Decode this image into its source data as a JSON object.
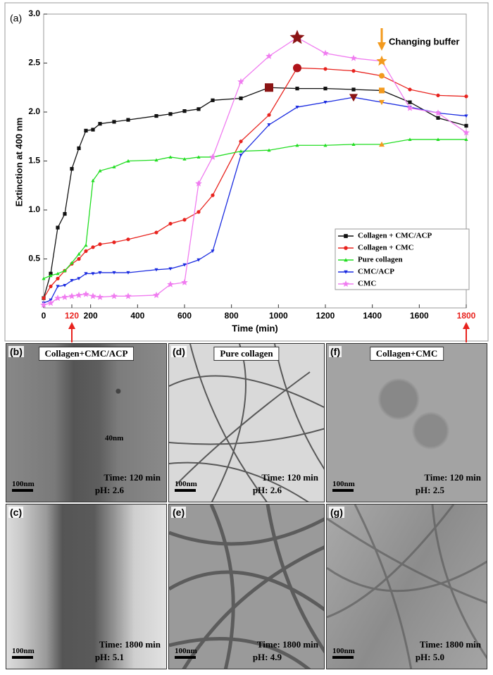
{
  "chart_data": {
    "type": "line",
    "panel_label": "(a)",
    "y_label": "Extinction at 400 nm",
    "x_label": "Time (min)",
    "xlim": [
      0,
      1800
    ],
    "ylim": [
      0,
      3
    ],
    "xticks": [
      0,
      120,
      200,
      400,
      600,
      800,
      1000,
      1200,
      1400,
      1600,
      1800
    ],
    "yticks": [
      0.5,
      {
        "value": 1,
        "label": "1.0"
      },
      1.5,
      {
        "value": 2,
        "label": "2.0"
      },
      2.5,
      {
        "value": 3,
        "label": "3.0"
      }
    ],
    "highlight_xticks": [
      120,
      1800
    ],
    "highlight_color": "#e8231e",
    "annotation": "Changing buffer",
    "buffer_change_x": 1440,
    "buffer_color": "#f39a1e",
    "legend": "lower right",
    "x": [
      0,
      30,
      60,
      90,
      120,
      150,
      180,
      210,
      240,
      300,
      360,
      480,
      540,
      600,
      660,
      720,
      840,
      960,
      1080,
      1200,
      1320,
      1440,
      1560,
      1680,
      1800
    ],
    "series": [
      {
        "name": "Collagen + CMC/ACP",
        "color": "#111111",
        "marker": "square",
        "highlight_x": 960,
        "highlight_color": "#8b1414",
        "values": [
          0.1,
          0.35,
          0.82,
          0.96,
          1.42,
          1.63,
          1.81,
          1.82,
          1.88,
          1.9,
          1.92,
          1.96,
          1.98,
          2.01,
          2.03,
          2.12,
          2.14,
          2.25,
          2.24,
          2.24,
          2.23,
          2.22,
          2.1,
          1.94,
          1.86
        ]
      },
      {
        "name": "Collagen + CMC",
        "color": "#e8231e",
        "marker": "circle",
        "highlight_x": 1080,
        "highlight_color": "#b0141a",
        "values": [
          0.1,
          0.22,
          0.3,
          0.38,
          0.45,
          0.5,
          0.58,
          0.62,
          0.65,
          0.67,
          0.7,
          0.77,
          0.86,
          0.9,
          0.98,
          1.15,
          1.7,
          1.97,
          2.45,
          2.44,
          2.42,
          2.37,
          2.23,
          2.17,
          2.16
        ]
      },
      {
        "name": "Pure collagen",
        "color": "#22dd22",
        "marker": "triangle",
        "values": [
          0.3,
          0.33,
          0.35,
          0.38,
          0.46,
          0.55,
          0.64,
          1.3,
          1.4,
          1.44,
          1.5,
          1.51,
          1.54,
          1.52,
          1.54,
          1.54,
          1.6,
          1.61,
          1.66,
          1.66,
          1.67,
          1.67,
          1.72,
          1.72,
          1.72
        ]
      },
      {
        "name": "CMC/ACP",
        "color": "#1a2be0",
        "marker": "triangle-down",
        "highlight_x": 1320,
        "highlight_color": "#8b1414",
        "values": [
          0.05,
          0.08,
          0.22,
          0.23,
          0.28,
          0.3,
          0.35,
          0.35,
          0.36,
          0.36,
          0.36,
          0.39,
          0.4,
          0.44,
          0.49,
          0.58,
          1.56,
          1.87,
          2.05,
          2.1,
          2.15,
          2.1,
          2.05,
          1.99,
          1.96
        ]
      },
      {
        "name": "CMC",
        "color": "#f07cf0",
        "marker": "star",
        "highlight_x": 1080,
        "highlight_color": "#8b1414",
        "values": [
          0.03,
          0.05,
          0.1,
          0.11,
          0.12,
          0.13,
          0.14,
          0.12,
          0.11,
          0.12,
          0.12,
          0.13,
          0.24,
          0.26,
          1.27,
          1.54,
          2.31,
          2.57,
          2.76,
          2.6,
          2.55,
          2.52,
          2.04,
          1.99,
          1.79
        ]
      }
    ]
  },
  "panels": [
    {
      "label": "(b)",
      "title": "Collagen+CMC/ACP",
      "note": "40nm",
      "scale": "100nm",
      "time": "Time: 120 min",
      "ph": "pH: 2.6"
    },
    {
      "label": "(d)",
      "title": "Pure collagen",
      "scale": "100nm",
      "time": "Time: 120 min",
      "ph": "pH: 2.6"
    },
    {
      "label": "(f)",
      "title": "Collagen+CMC",
      "scale": "100nm",
      "time": "Time: 120 min",
      "ph": "pH: 2.5"
    },
    {
      "label": "(c)",
      "scale": "100nm",
      "time": "Time: 1800 min",
      "ph": "pH: 5.1"
    },
    {
      "label": "(e)",
      "scale": "100nm",
      "time": "Time: 1800 min",
      "ph": "pH: 4.9"
    },
    {
      "label": "(g)",
      "scale": "100nm",
      "time": "Time: 1800 min",
      "ph": "pH: 5.0"
    }
  ]
}
